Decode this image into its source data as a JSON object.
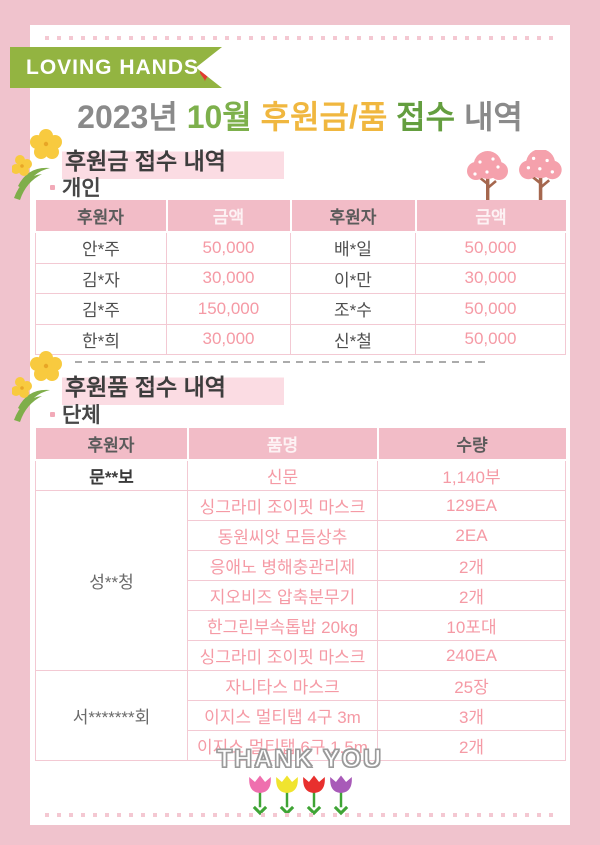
{
  "banner": {
    "text": "LOVING HANDS",
    "heart": "♥"
  },
  "title": {
    "parts": [
      {
        "text": "2023년 ",
        "color": "#8a8a8a"
      },
      {
        "text": "10월 ",
        "color": "#7db04c"
      },
      {
        "text": "후원금/품 ",
        "color": "#f0b73f"
      },
      {
        "text": "접수 ",
        "color": "#649e3f"
      },
      {
        "text": "내역",
        "color": "#8a8a8a"
      }
    ]
  },
  "section1": {
    "title": "후원금 접수 내역",
    "subtitle": "개인",
    "table": {
      "headers": [
        {
          "label": "후원자",
          "style": "dark"
        },
        {
          "label": "금액",
          "style": "light"
        },
        {
          "label": "후원자",
          "style": "dark"
        },
        {
          "label": "금액",
          "style": "light"
        }
      ],
      "rows": [
        [
          "안*주",
          "50,000",
          "배*일",
          "50,000"
        ],
        [
          "김*자",
          "30,000",
          "이*만",
          "30,000"
        ],
        [
          "김*주",
          "150,000",
          "조*수",
          "50,000"
        ],
        [
          "한*희",
          "30,000",
          "신*철",
          "50,000"
        ]
      ]
    }
  },
  "section2": {
    "title": "후원품 접수 내역",
    "subtitle": "단체",
    "table": {
      "headers": [
        {
          "label": "후원자",
          "style": "dark"
        },
        {
          "label": "품명",
          "style": "light"
        },
        {
          "label": "수량",
          "style": "dark"
        }
      ],
      "groups": [
        {
          "donor": "문**보",
          "bold": true,
          "items": [
            {
              "name": "신문",
              "qty": "1,140부"
            }
          ]
        },
        {
          "donor": "성**청",
          "bold": false,
          "items": [
            {
              "name": "싱그라미 조이핏 마스크",
              "qty": "129EA"
            },
            {
              "name": "동원씨앗 모듬상추",
              "qty": "2EA"
            },
            {
              "name": "응애노 병해충관리제",
              "qty": "2개"
            },
            {
              "name": "지오비즈 압축분무기",
              "qty": "2개"
            },
            {
              "name": "한그린부속톱밥 20kg",
              "qty": "10포대"
            },
            {
              "name": "싱그라미 조이핏 마스크",
              "qty": "240EA"
            }
          ]
        },
        {
          "donor": "서*******회",
          "bold": false,
          "items": [
            {
              "name": "자니타스 마스크",
              "qty": "25장"
            },
            {
              "name": "이지스 멀티탭 4구 3m",
              "qty": "3개"
            },
            {
              "name": "이지스 멀티탭 6구 1.5m",
              "qty": "2개"
            }
          ]
        }
      ]
    }
  },
  "footer": {
    "thank_you": "THANK YOU"
  },
  "colors": {
    "page_bg": "#f0c3cd",
    "dot_pink": "#f4c8d2",
    "banner_green": "#93b441",
    "heart_red": "#e23b30",
    "highlight_pink": "#fbdce3",
    "table_header_bg": "#f2bcc7",
    "accent_pink_text": "#f59aa5",
    "tulip_colors": [
      "#ef6fae",
      "#f0e42f",
      "#e8302e",
      "#a85ab8"
    ],
    "tulip_stem_green": "#3fa435",
    "tree_pink": "#f5a1ac",
    "tree_trunk": "#a5674e",
    "flower_yellow": "#f8ca3f",
    "leaf_green": "#7fae4a"
  }
}
